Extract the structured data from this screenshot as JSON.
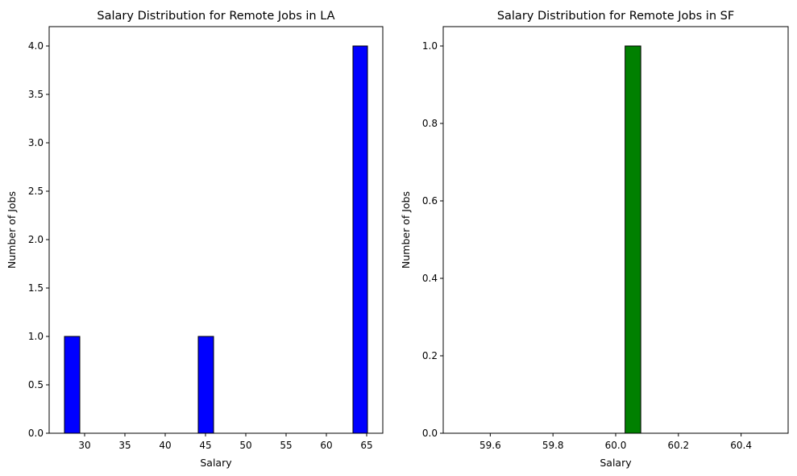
{
  "chart_data": [
    {
      "type": "bar",
      "title": "Salary Distribution for Remote Jobs in LA",
      "xlabel": "Salary",
      "ylabel": "Number of Jobs",
      "bar_color": "#0000ff",
      "edge_color": "#000000",
      "xlim": [
        25.6,
        67.0
      ],
      "ylim": [
        0,
        4.2
      ],
      "xticks": [
        30,
        35,
        40,
        45,
        50,
        55,
        60,
        65
      ],
      "xtick_labels": [
        "30",
        "35",
        "40",
        "45",
        "50",
        "55",
        "60",
        "65"
      ],
      "yticks": [
        0,
        0.5,
        1.0,
        1.5,
        2.0,
        2.5,
        3.0,
        3.5,
        4.0
      ],
      "ytick_labels": [
        "0.0",
        "0.5",
        "1.0",
        "1.5",
        "2.0",
        "2.5",
        "3.0",
        "3.5",
        "4.0"
      ],
      "bars": [
        {
          "x0": 27.5,
          "x1": 29.4,
          "value": 1
        },
        {
          "x0": 44.1,
          "x1": 46.0,
          "value": 1
        },
        {
          "x0": 63.3,
          "x1": 65.1,
          "value": 4
        }
      ]
    },
    {
      "type": "bar",
      "title": "Salary Distribution for Remote Jobs in SF",
      "xlabel": "Salary",
      "ylabel": "Number of Jobs",
      "bar_color": "#008000",
      "edge_color": "#000000",
      "xlim": [
        59.45,
        60.55
      ],
      "ylim": [
        0,
        1.05
      ],
      "xticks": [
        59.6,
        59.8,
        60.0,
        60.2,
        60.4
      ],
      "xtick_labels": [
        "59.6",
        "59.8",
        "60.0",
        "60.2",
        "60.4"
      ],
      "yticks": [
        0,
        0.2,
        0.4,
        0.6,
        0.8,
        1.0
      ],
      "ytick_labels": [
        "0.0",
        "0.2",
        "0.4",
        "0.6",
        "0.8",
        "1.0"
      ],
      "bars": [
        {
          "x0": 60.03,
          "x1": 60.08,
          "value": 1
        }
      ],
      "baseline": {
        "x0": 59.5,
        "x1": 60.5
      }
    }
  ]
}
